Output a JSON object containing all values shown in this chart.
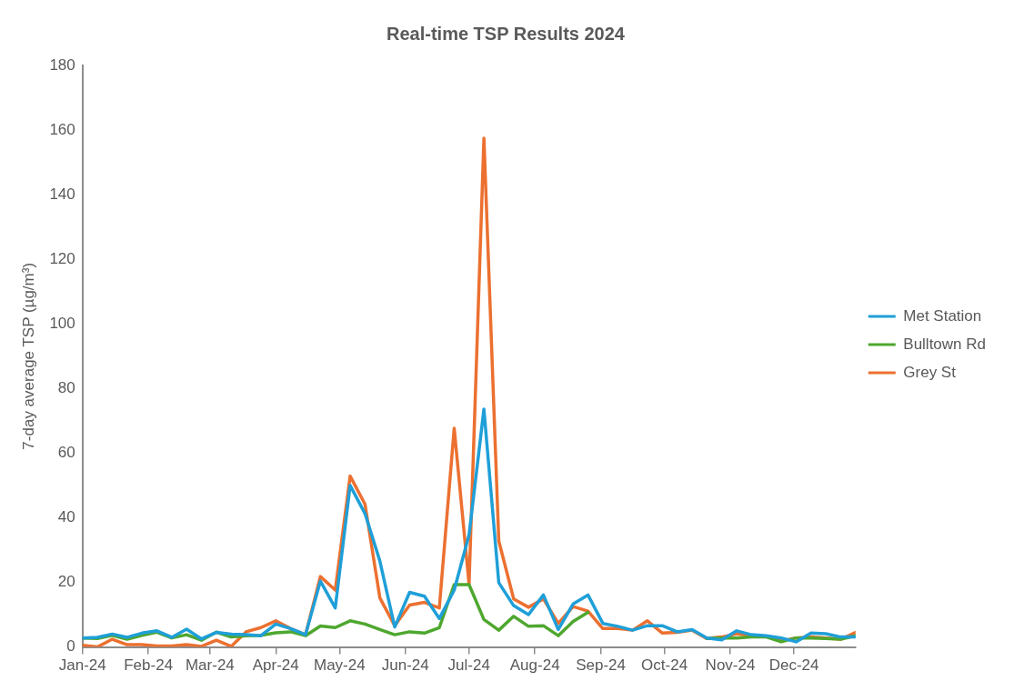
{
  "chart_data": {
    "type": "line",
    "title": "Real-time TSP Results 2024",
    "ylabel": "7-day average TSP (µg/m³)",
    "x": [
      "2024-01-01",
      "2024-01-08",
      "2024-01-15",
      "2024-01-22",
      "2024-01-29",
      "2024-02-05",
      "2024-02-12",
      "2024-02-19",
      "2024-02-26",
      "2024-03-04",
      "2024-03-11",
      "2024-03-18",
      "2024-03-25",
      "2024-04-01",
      "2024-04-08",
      "2024-04-15",
      "2024-04-22",
      "2024-04-29",
      "2024-05-06",
      "2024-05-13",
      "2024-05-20",
      "2024-05-27",
      "2024-06-03",
      "2024-06-10",
      "2024-06-17",
      "2024-06-24",
      "2024-07-01",
      "2024-07-08",
      "2024-07-15",
      "2024-07-22",
      "2024-07-29",
      "2024-08-05",
      "2024-08-12",
      "2024-08-19",
      "2024-08-26",
      "2024-09-02",
      "2024-09-09",
      "2024-09-16",
      "2024-09-23",
      "2024-09-30",
      "2024-10-07",
      "2024-10-14",
      "2024-10-21",
      "2024-10-28",
      "2024-11-04",
      "2024-11-11",
      "2024-11-18",
      "2024-11-25",
      "2024-12-02",
      "2024-12-09",
      "2024-12-16",
      "2024-12-23",
      "2024-12-30"
    ],
    "series": [
      {
        "name": "Met Station",
        "color": "#1f9fd8",
        "values": [
          2.8,
          3,
          4,
          3,
          4.3,
          5,
          3,
          5.5,
          2.5,
          4.5,
          4,
          3.8,
          3.5,
          7.1,
          5.7,
          3.8,
          20.4,
          12.1,
          50,
          41.3,
          26.6,
          6.2,
          16.9,
          15.7,
          8.8,
          17.6,
          34.7,
          73.6,
          19.9,
          12.8,
          10,
          16.1,
          5.4,
          13.3,
          16.1,
          7.3,
          6.4,
          5.2,
          6.6,
          6.6,
          4.7,
          5.4,
          2.8,
          2.2,
          5,
          3.8,
          3.5,
          2.8,
          1.6,
          4.3,
          4.1,
          3.1,
          3.1
        ]
      },
      {
        "name": "Bulltown Rd",
        "color": "#4ea72e",
        "values": [
          2.8,
          2.6,
          3.6,
          2.4,
          3.6,
          4.6,
          2.8,
          3.8,
          2.1,
          4.6,
          3.1,
          3.5,
          3.6,
          4.4,
          4.7,
          3.5,
          6.5,
          6,
          8.1,
          7.1,
          5.4,
          3.8,
          4.7,
          4.3,
          6,
          19.3,
          19.3,
          8.5,
          5.2,
          9.5,
          6.4,
          6.6,
          3.5,
          7.9,
          10.7,
          null,
          null,
          null,
          null,
          null,
          null,
          null,
          2.6,
          2.8,
          2.8,
          3.1,
          3.1,
          1.6,
          2.8,
          2.8,
          2.6,
          2.4,
          3.5
        ]
      },
      {
        "name": "Grey St",
        "color": "#ec7030",
        "values": [
          0.5,
          0,
          2.4,
          0.7,
          0.7,
          0.3,
          0.3,
          0.7,
          0.2,
          2.1,
          0.2,
          4.7,
          6,
          8.1,
          5.7,
          3.8,
          21.8,
          17.6,
          52.9,
          44.2,
          15.2,
          6.6,
          13,
          13.8,
          12.1,
          67.7,
          19.5,
          157.5,
          32.8,
          14.9,
          12.3,
          14.9,
          7.3,
          12.5,
          11.1,
          5.7,
          5.7,
          5.2,
          8.1,
          4.3,
          4.5,
          5.2,
          2.6,
          3.1,
          4.1,
          3.5,
          3.3,
          1.9,
          2.8,
          3.1,
          2.8,
          2.4,
          4.5
        ]
      }
    ],
    "xlim": [
      "2024-01-01",
      "2024-12-30"
    ],
    "xticks": [
      {
        "value": "2024-01-01",
        "label": "Jan-24"
      },
      {
        "value": "2024-02-01",
        "label": "Feb-24"
      },
      {
        "value": "2024-03-01",
        "label": "Mar-24"
      },
      {
        "value": "2024-04-01",
        "label": "Apr-24"
      },
      {
        "value": "2024-05-01",
        "label": "May-24"
      },
      {
        "value": "2024-06-01",
        "label": "Jun-24"
      },
      {
        "value": "2024-07-01",
        "label": "Jul-24"
      },
      {
        "value": "2024-08-01",
        "label": "Aug-24"
      },
      {
        "value": "2024-09-01",
        "label": "Sep-24"
      },
      {
        "value": "2024-10-01",
        "label": "Oct-24"
      },
      {
        "value": "2024-11-01",
        "label": "Nov-24"
      },
      {
        "value": "2024-12-01",
        "label": "Dec-24"
      }
    ],
    "ylim": [
      0,
      180
    ],
    "yticks": [
      0,
      20,
      40,
      60,
      80,
      100,
      120,
      140,
      160,
      180
    ],
    "grid": false,
    "legend": "right",
    "marker": "none",
    "line_style": "solid"
  }
}
